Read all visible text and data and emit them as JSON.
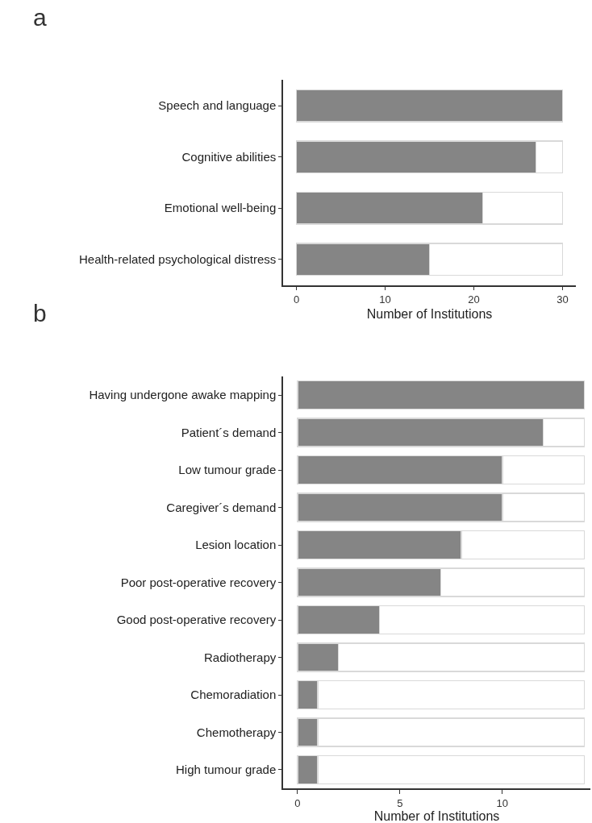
{
  "chart_data": [
    {
      "type": "bar",
      "title": "a",
      "orientation": "horizontal",
      "stacked": true,
      "xlabel": "Number of Institutions",
      "categories": [
        "Speech and language",
        "Cognitive abilities",
        "Emotional well-being",
        "Health-related psychological distress"
      ],
      "series": [
        {
          "color": "#858585",
          "values": [
            30,
            27,
            21,
            15
          ]
        },
        {
          "color": "#ffffff",
          "values": [
            0,
            3,
            9,
            15
          ]
        }
      ],
      "xlim": [
        -1.5,
        31.5
      ],
      "xticks": [
        0,
        10,
        20,
        30
      ]
    },
    {
      "type": "bar",
      "title": "b",
      "orientation": "horizontal",
      "stacked": true,
      "xlabel": "Number of Institutions",
      "categories": [
        "Having undergone awake mapping",
        "Patient´s demand",
        "Low tumour grade",
        "Caregiver´s demand",
        "Lesion location",
        "Poor post-operative recovery",
        "Good post-operative recovery",
        "Radiotherapy",
        "Chemoradiation",
        "Chemotherapy",
        "High tumour grade"
      ],
      "series": [
        {
          "color": "#858585",
          "values": [
            14,
            12,
            10,
            10,
            8,
            7,
            4,
            2,
            1,
            1,
            1
          ]
        },
        {
          "color": "#ffffff",
          "values": [
            0,
            2,
            4,
            4,
            6,
            7,
            10,
            12,
            13,
            13,
            13
          ]
        }
      ],
      "xlim": [
        -0.7,
        14.3
      ],
      "xticks": [
        0,
        5,
        10
      ]
    }
  ]
}
